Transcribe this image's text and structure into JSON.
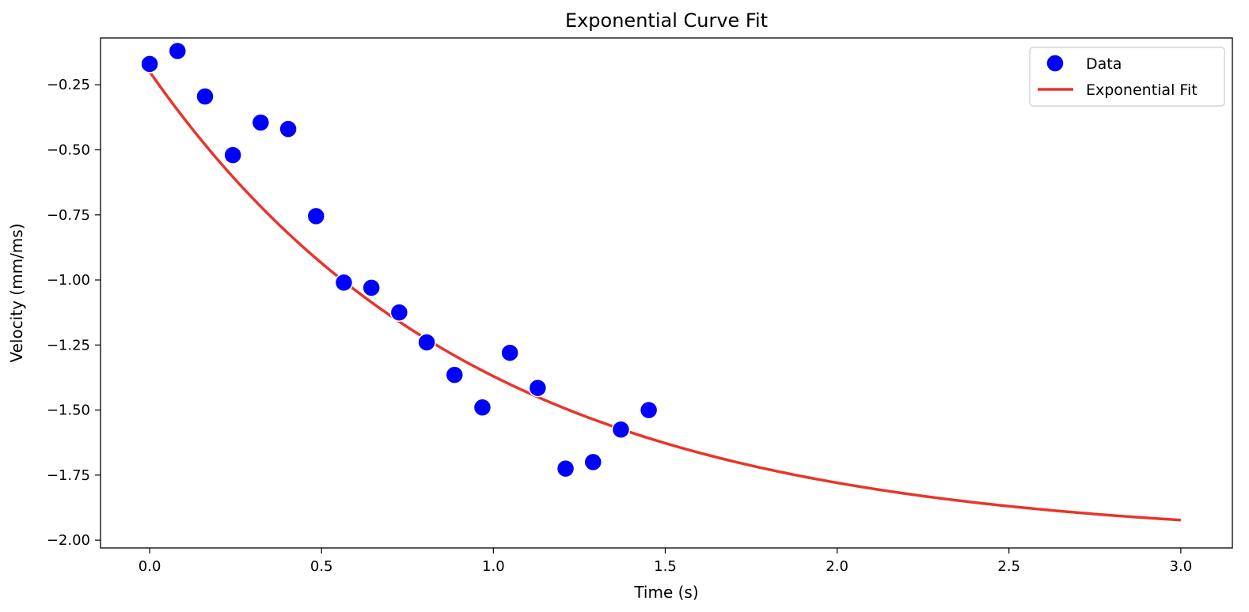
{
  "chart_data": {
    "type": "scatter",
    "title": "Exponential Curve Fit",
    "xlabel": "Time (s)",
    "ylabel": "Velocity (mm/ms)",
    "xlim": [
      -0.143,
      3.15
    ],
    "ylim": [
      -2.03,
      -0.07
    ],
    "xticks": [
      0.0,
      0.5,
      1.0,
      1.5,
      2.0,
      2.5,
      3.0
    ],
    "xtick_labels": [
      "0.0",
      "0.5",
      "1.0",
      "1.5",
      "2.0",
      "2.5",
      "3.0"
    ],
    "yticks": [
      -0.25,
      -0.5,
      -0.75,
      -1.0,
      -1.25,
      -1.5,
      -1.75,
      -2.0
    ],
    "ytick_labels": [
      "−0.25",
      "−0.50",
      "−0.75",
      "−1.00",
      "−1.25",
      "−1.50",
      "−1.75",
      "−2.00"
    ],
    "grid": false,
    "legend_position": "top-right",
    "series": [
      {
        "name": "Data",
        "kind": "scatter",
        "color": "#0000ff",
        "x": [
          0.0,
          0.081,
          0.161,
          0.242,
          0.323,
          0.403,
          0.484,
          0.565,
          0.645,
          0.726,
          0.806,
          0.887,
          0.968,
          1.048,
          1.129,
          1.21,
          1.29,
          1.371,
          1.452
        ],
        "y": [
          -0.17,
          -0.12,
          -0.295,
          -0.52,
          -0.395,
          -0.42,
          -0.755,
          -1.01,
          -1.03,
          -1.125,
          -1.24,
          -1.365,
          -1.49,
          -1.28,
          -1.415,
          -1.725,
          -1.7,
          -1.575,
          -1.5
        ]
      },
      {
        "name": "Exponential Fit",
        "kind": "line",
        "color": "#e8352b",
        "model": "y = a * exp(-b * x) + c",
        "params": {
          "a": 1.8,
          "b": 1.05,
          "c": -2.0
        },
        "x_range": [
          0.0,
          3.0
        ]
      }
    ]
  }
}
